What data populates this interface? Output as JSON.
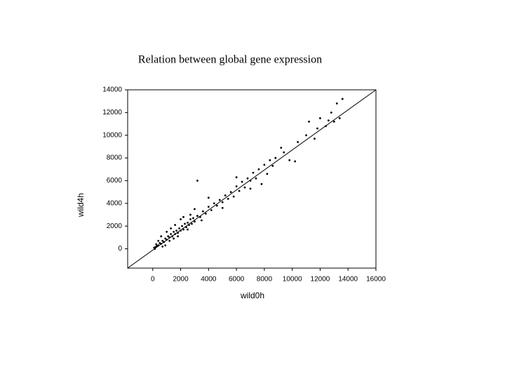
{
  "chart_data": {
    "type": "scatter",
    "title": "Relation between global gene expression",
    "x_label": "wild0h",
    "y_label": "wild4h",
    "x": [
      100,
      200,
      300,
      400,
      500,
      600,
      700,
      800,
      900,
      1000,
      1100,
      1200,
      1300,
      1400,
      1500,
      1600,
      1700,
      1800,
      1900,
      2000,
      2100,
      2200,
      2300,
      2400,
      2500,
      2600,
      2700,
      2800,
      2900,
      3000,
      3200,
      3200,
      3400,
      3600,
      3800,
      4000,
      4200,
      4400,
      4600,
      4800,
      5000,
      5200,
      5400,
      5600,
      5800,
      6000,
      6200,
      6400,
      6600,
      6800,
      7000,
      7200,
      7400,
      7600,
      7800,
      8000,
      8200,
      8400,
      8600,
      8800,
      9200,
      9400,
      9800,
      10200,
      10400,
      11000,
      11200,
      11600,
      11800,
      12000,
      12400,
      12600,
      12800,
      13000,
      13200,
      13400,
      13600,
      600,
      1000,
      1500,
      2000,
      2500,
      900,
      400,
      1300,
      1800,
      2200,
      3000,
      3500,
      150,
      250,
      700,
      1200,
      1600,
      2700,
      4000,
      5000,
      6000,
      7000
    ],
    "values": [
      100,
      150,
      250,
      300,
      500,
      450,
      700,
      600,
      900,
      800,
      1100,
      1000,
      1300,
      1100,
      1500,
      1300,
      1600,
      1400,
      1800,
      1600,
      2000,
      1700,
      2200,
      1900,
      2300,
      2100,
      2600,
      2200,
      2700,
      2400,
      2900,
      6000,
      2800,
      3300,
      3100,
      3700,
      3400,
      4000,
      3800,
      4300,
      4100,
      4700,
      4400,
      5000,
      4600,
      5500,
      5100,
      5900,
      5400,
      6200,
      6000,
      6700,
      6200,
      7000,
      5700,
      7400,
      6600,
      7800,
      7300,
      8000,
      8900,
      8500,
      7800,
      7700,
      9400,
      10000,
      11200,
      9700,
      10600,
      11500,
      10800,
      11300,
      12000,
      11200,
      12800,
      11500,
      13200,
      1100,
      1500,
      900,
      2600,
      1700,
      300,
      700,
      1800,
      1100,
      2800,
      3500,
      2500,
      0,
      400,
      200,
      700,
      2100,
      3000,
      4500,
      3600,
      6300,
      5300
    ],
    "color": "#000000",
    "fit_line": {
      "x": [
        -1800,
        16000
      ],
      "y": [
        -1700,
        14000
      ]
    },
    "xlim": [
      -1800,
      16000
    ],
    "xticks": [
      0,
      2000,
      4000,
      6000,
      8000,
      10000,
      12000,
      14000,
      16000
    ],
    "ylim": [
      -1700,
      14000
    ],
    "yticks": [
      0,
      2000,
      4000,
      6000,
      8000,
      10000,
      12000,
      14000
    ]
  }
}
